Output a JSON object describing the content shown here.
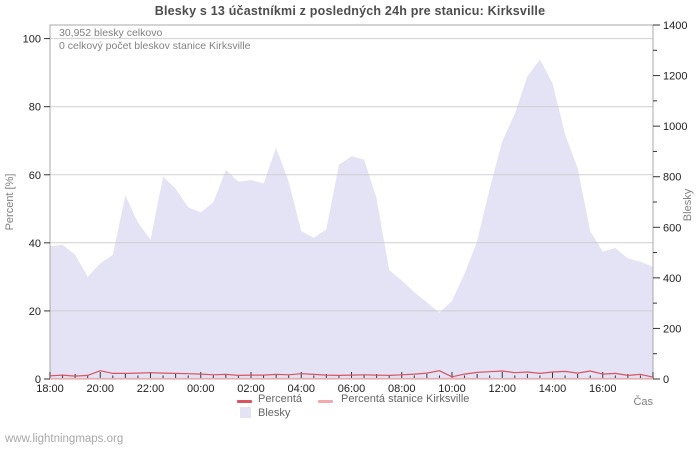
{
  "title": "Blesky s 13 účastníkmi z posledných 24h pre stanicu: Kirksville",
  "annotations": {
    "total": "30,952 blesky celkovo",
    "station_total": "0 celkový počet bleskov stanice Kirksville"
  },
  "legend": {
    "percent": "Percentá",
    "station_percent": "Percentá stanice Kirksville",
    "blesky": "Blesky"
  },
  "watermark": "www.lightningmaps.org",
  "colors": {
    "area": "#e4e3f6",
    "percent_line": "#d9545e",
    "station_line": "#f2a9ae",
    "grid": "#c9c9c9",
    "frame": "#aaaaaa",
    "tick": "#333333",
    "axis_text": "#222222",
    "muted_text": "#808080"
  },
  "chart_data": {
    "type": "area",
    "title": "Blesky s 13 účastníkmi z posledných 24h pre stanicu: Kirksville",
    "x_label": "Čas",
    "x_start": "18:00",
    "x_step_minutes": 30,
    "x_tick_labels": [
      "18:00",
      "20:00",
      "22:00",
      "00:00",
      "02:00",
      "04:00",
      "06:00",
      "08:00",
      "10:00",
      "12:00",
      "14:00",
      "16:00"
    ],
    "y_left": {
      "label": "Percent  [%]",
      "ticks": [
        0,
        20,
        40,
        60,
        80,
        100
      ],
      "range": [
        0,
        100
      ]
    },
    "y_right": {
      "label": "Blesky",
      "ticks": [
        0,
        200,
        400,
        600,
        800,
        1000,
        1200,
        1400
      ],
      "minor_step": 100,
      "range": [
        0,
        1400
      ]
    },
    "grid": true,
    "legend_position": "bottom",
    "series": [
      {
        "name": "Blesky",
        "type": "area",
        "axis": "right",
        "color": "#e4e3f6",
        "values": [
          525,
          531,
          491,
          404,
          457,
          491,
          726,
          619,
          551,
          800,
          753,
          679,
          659,
          699,
          827,
          780,
          787,
          773,
          915,
          780,
          585,
          558,
          592,
          847,
          881,
          868,
          713,
          430,
          390,
          343,
          303,
          262,
          309,
          417,
          545,
          753,
          941,
          1049,
          1197,
          1264,
          1170,
          968,
          834,
          585,
          504,
          518,
          477,
          464,
          444
        ]
      },
      {
        "name": "Percentá",
        "type": "line",
        "axis": "left",
        "color": "#d9545e",
        "values": [
          0.8,
          1.0,
          0.7,
          0.9,
          2.3,
          1.5,
          1.5,
          1.6,
          1.7,
          1.6,
          1.5,
          1.4,
          1.3,
          1.1,
          1.2,
          0.9,
          1.0,
          1.0,
          1.2,
          1.1,
          1.4,
          1.2,
          1.0,
          0.9,
          1.0,
          1.1,
          1.0,
          0.9,
          1.1,
          1.3,
          1.6,
          2.3,
          0.5,
          1.3,
          1.8,
          2.0,
          2.2,
          1.7,
          1.9,
          1.5,
          1.9,
          2.1,
          1.6,
          2.2,
          1.3,
          1.5,
          0.9,
          1.2,
          0.4
        ]
      },
      {
        "name": "Percentá stanice Kirksville",
        "type": "line",
        "axis": "left",
        "color": "#f2a9ae",
        "values": [
          0,
          0,
          0,
          0,
          0,
          0,
          0,
          0,
          0,
          0,
          0,
          0,
          0,
          0,
          0,
          0,
          0,
          0,
          0,
          0,
          0,
          0,
          0,
          0,
          0,
          0,
          0,
          0,
          0,
          0,
          0,
          0,
          0,
          0,
          0,
          0,
          0,
          0,
          0,
          0,
          0,
          0,
          0,
          0,
          0,
          0,
          0,
          0,
          0
        ]
      }
    ]
  }
}
